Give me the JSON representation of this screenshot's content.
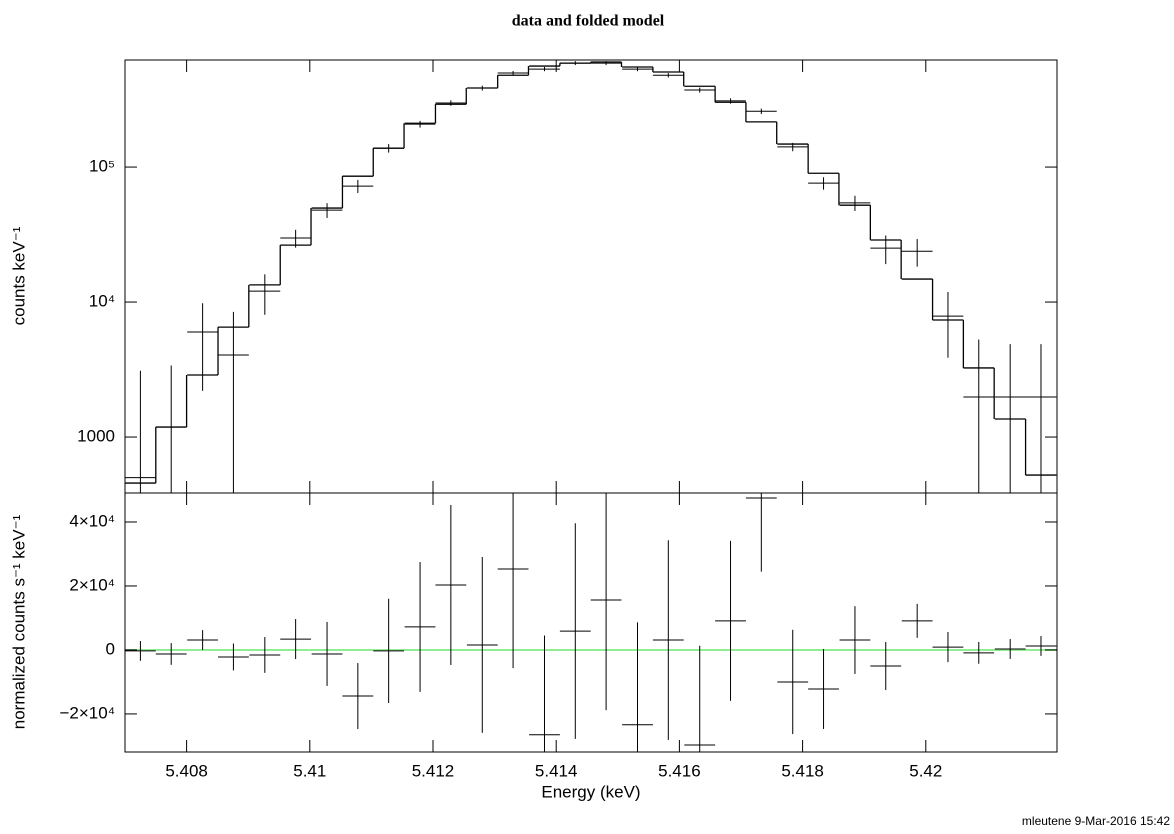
{
  "chart_data": [
    {
      "type": "errorbar",
      "title": "data and folded model",
      "ylabel": "counts keV⁻¹",
      "log_y": true,
      "x": [
        5.40725,
        5.40775,
        5.40826,
        5.40876,
        5.40927,
        5.40977,
        5.41028,
        5.41078,
        5.41128,
        5.41179,
        5.41229,
        5.4128,
        5.4133,
        5.41381,
        5.41431,
        5.41481,
        5.41532,
        5.41582,
        5.41633,
        5.41683,
        5.41733,
        5.41784,
        5.41834,
        5.41885,
        5.41935,
        5.41986,
        5.42036,
        5.42086,
        5.42137,
        5.42187
      ],
      "x_error": 0.00025,
      "values": [
        500,
        1186,
        6000,
        4050,
        12050,
        29800,
        48000,
        72300,
        138000,
        208000,
        298000,
        385000,
        497000,
        532000,
        589000,
        589000,
        532000,
        479000,
        372000,
        309000,
        259000,
        141000,
        76000,
        54300,
        25100,
        23800,
        7870,
        1980,
        1980,
        1980
      ],
      "errors": [
        2600,
        2200,
        3800,
        4400,
        4000,
        4500,
        6000,
        8000,
        10000,
        12000,
        14000,
        16000,
        18000,
        19000,
        20000,
        20000,
        19000,
        18000,
        16000,
        14000,
        12000,
        10000,
        8000,
        7000,
        6000,
        5500,
        4000,
        3300,
        2900,
        2900
      ],
      "model_values": [
        456,
        1186,
        2880,
        6520,
        13400,
        26400,
        49700,
        85600,
        138000,
        211000,
        292000,
        385000,
        479000,
        560000,
        589000,
        600000,
        551000,
        506000,
        397000,
        302000,
        216000,
        148000,
        90000,
        52200,
        28800,
        14800,
        7360,
        3250,
        1360,
        523
      ],
      "color": "#000000",
      "xlim": [
        5.407,
        5.42213
      ],
      "ylim": [
        385,
        621000
      ],
      "xticks": [
        5.408,
        5.41,
        5.412,
        5.414,
        5.416,
        5.418,
        5.42
      ],
      "yticks": [
        {
          "value": 100000,
          "label": "10⁵"
        },
        {
          "value": 10000,
          "label": "10⁴"
        },
        1000
      ]
    },
    {
      "type": "errorbar",
      "ylabel": "normalized counts s⁻¹ keV⁻¹",
      "xlabel": "Energy (keV)",
      "log_y": false,
      "x": [
        5.40725,
        5.40775,
        5.40826,
        5.40876,
        5.40927,
        5.40977,
        5.41028,
        5.41078,
        5.41128,
        5.41179,
        5.41229,
        5.4128,
        5.4133,
        5.41381,
        5.41431,
        5.41481,
        5.41532,
        5.41582,
        5.41633,
        5.41683,
        5.41733,
        5.41784,
        5.41834,
        5.41885,
        5.41935,
        5.41986,
        5.42036,
        5.42086,
        5.42137,
        5.42187
      ],
      "x_error": 0.00025,
      "values": [
        -300,
        -1250,
        3100,
        -2200,
        -1560,
        3400,
        -1250,
        -14400,
        -300,
        7200,
        20300,
        1560,
        25300,
        -26500,
        5900,
        15600,
        -23400,
        3100,
        -29700,
        9100,
        47500,
        -10000,
        -12200,
        3100,
        -5000,
        9100,
        900,
        -900,
        300,
        1250
      ],
      "errors": [
        3100,
        3400,
        3100,
        4200,
        5600,
        6250,
        10000,
        10300,
        16300,
        20300,
        25000,
        27500,
        31000,
        31000,
        33700,
        34400,
        32000,
        31200,
        31000,
        25000,
        23000,
        16300,
        12500,
        10600,
        7500,
        5300,
        4700,
        3400,
        3100,
        3100
      ],
      "color": "#000000",
      "zero_line_color": "#90ee90",
      "xlim": [
        5.407,
        5.42213
      ],
      "ylim": [
        -31900,
        49060
      ],
      "xticks": [
        5.408,
        5.41,
        5.412,
        5.414,
        5.416,
        5.418,
        5.42
      ],
      "yticks": [
        {
          "value": 40000,
          "label": "4×10⁴"
        },
        {
          "value": 20000,
          "label": "2×10⁴"
        },
        0,
        {
          "value": -20000,
          "label": "−2×10⁴"
        }
      ]
    }
  ],
  "footer": "mleutene  9-Mar-2016 15:42"
}
